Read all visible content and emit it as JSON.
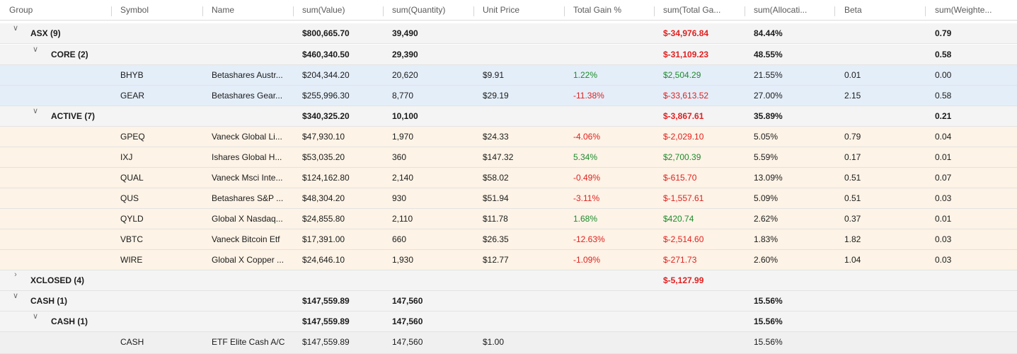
{
  "columns": [
    "Group",
    "Symbol",
    "Name",
    "sum(Value)",
    "sum(Quantity)",
    "Unit Price",
    "Total Gain %",
    "sum(Total Ga...",
    "sum(Allocati...",
    "Beta",
    "sum(Weighte..."
  ],
  "groups": {
    "asx": {
      "label": "ASX (9)",
      "chev": "∨",
      "value": "$800,665.70",
      "qty": "39,490",
      "gain": "$-34,976.84",
      "alloc": "84.44%",
      "weighted": "0.79"
    },
    "core": {
      "label": "CORE (2)",
      "chev": "∨",
      "value": "$460,340.50",
      "qty": "29,390",
      "gain": "$-31,109.23",
      "alloc": "48.55%",
      "weighted": "0.58"
    },
    "active": {
      "label": "ACTIVE (7)",
      "chev": "∨",
      "value": "$340,325.20",
      "qty": "10,100",
      "gain": "$-3,867.61",
      "alloc": "35.89%",
      "weighted": "0.21"
    },
    "xclosed": {
      "label": "XCLOSED (4)",
      "chev": "›",
      "gain": "$-5,127.99"
    },
    "cash": {
      "label": "CASH (1)",
      "chev": "∨",
      "value": "$147,559.89",
      "qty": "147,560",
      "alloc": "15.56%"
    },
    "cash_sub": {
      "label": "CASH (1)",
      "chev": "∨",
      "value": "$147,559.89",
      "qty": "147,560",
      "alloc": "15.56%"
    }
  },
  "rows": [
    {
      "symbol": "BHYB",
      "name": "Betashares Austr...",
      "value": "$204,344.20",
      "qty": "20,620",
      "price": "$9.91",
      "gainpct": "1.22%",
      "gain": "$2,504.29",
      "alloc": "21.55%",
      "beta": "0.01",
      "weighted": "0.00"
    },
    {
      "symbol": "GEAR",
      "name": "Betashares Gear...",
      "value": "$255,996.30",
      "qty": "8,770",
      "price": "$29.19",
      "gainpct": "-11.38%",
      "gain": "$-33,613.52",
      "alloc": "27.00%",
      "beta": "2.15",
      "weighted": "0.58"
    },
    {
      "symbol": "GPEQ",
      "name": "Vaneck Global Li...",
      "value": "$47,930.10",
      "qty": "1,970",
      "price": "$24.33",
      "gainpct": "-4.06%",
      "gain": "$-2,029.10",
      "alloc": "5.05%",
      "beta": "0.79",
      "weighted": "0.04"
    },
    {
      "symbol": "IXJ",
      "name": "Ishares Global H...",
      "value": "$53,035.20",
      "qty": "360",
      "price": "$147.32",
      "gainpct": "5.34%",
      "gain": "$2,700.39",
      "alloc": "5.59%",
      "beta": "0.17",
      "weighted": "0.01"
    },
    {
      "symbol": "QUAL",
      "name": "Vaneck Msci Inte...",
      "value": "$124,162.80",
      "qty": "2,140",
      "price": "$58.02",
      "gainpct": "-0.49%",
      "gain": "$-615.70",
      "alloc": "13.09%",
      "beta": "0.51",
      "weighted": "0.07"
    },
    {
      "symbol": "QUS",
      "name": "Betashares S&P ...",
      "value": "$48,304.20",
      "qty": "930",
      "price": "$51.94",
      "gainpct": "-3.11%",
      "gain": "$-1,557.61",
      "alloc": "5.09%",
      "beta": "0.51",
      "weighted": "0.03"
    },
    {
      "symbol": "QYLD",
      "name": "Global X Nasdaq...",
      "value": "$24,855.80",
      "qty": "2,110",
      "price": "$11.78",
      "gainpct": "1.68%",
      "gain": "$420.74",
      "alloc": "2.62%",
      "beta": "0.37",
      "weighted": "0.01"
    },
    {
      "symbol": "VBTC",
      "name": "Vaneck Bitcoin Etf",
      "value": "$17,391.00",
      "qty": "660",
      "price": "$26.35",
      "gainpct": "-12.63%",
      "gain": "$-2,514.60",
      "alloc": "1.83%",
      "beta": "1.82",
      "weighted": "0.03"
    },
    {
      "symbol": "WIRE",
      "name": "Global X Copper ...",
      "value": "$24,646.10",
      "qty": "1,930",
      "price": "$12.77",
      "gainpct": "-1.09%",
      "gain": "$-271.73",
      "alloc": "2.60%",
      "beta": "1.04",
      "weighted": "0.03"
    },
    {
      "symbol": "CASH",
      "name": "ETF Elite Cash A/C",
      "value": "$147,559.89",
      "qty": "147,560",
      "price": "$1.00",
      "alloc": "15.56%"
    }
  ]
}
